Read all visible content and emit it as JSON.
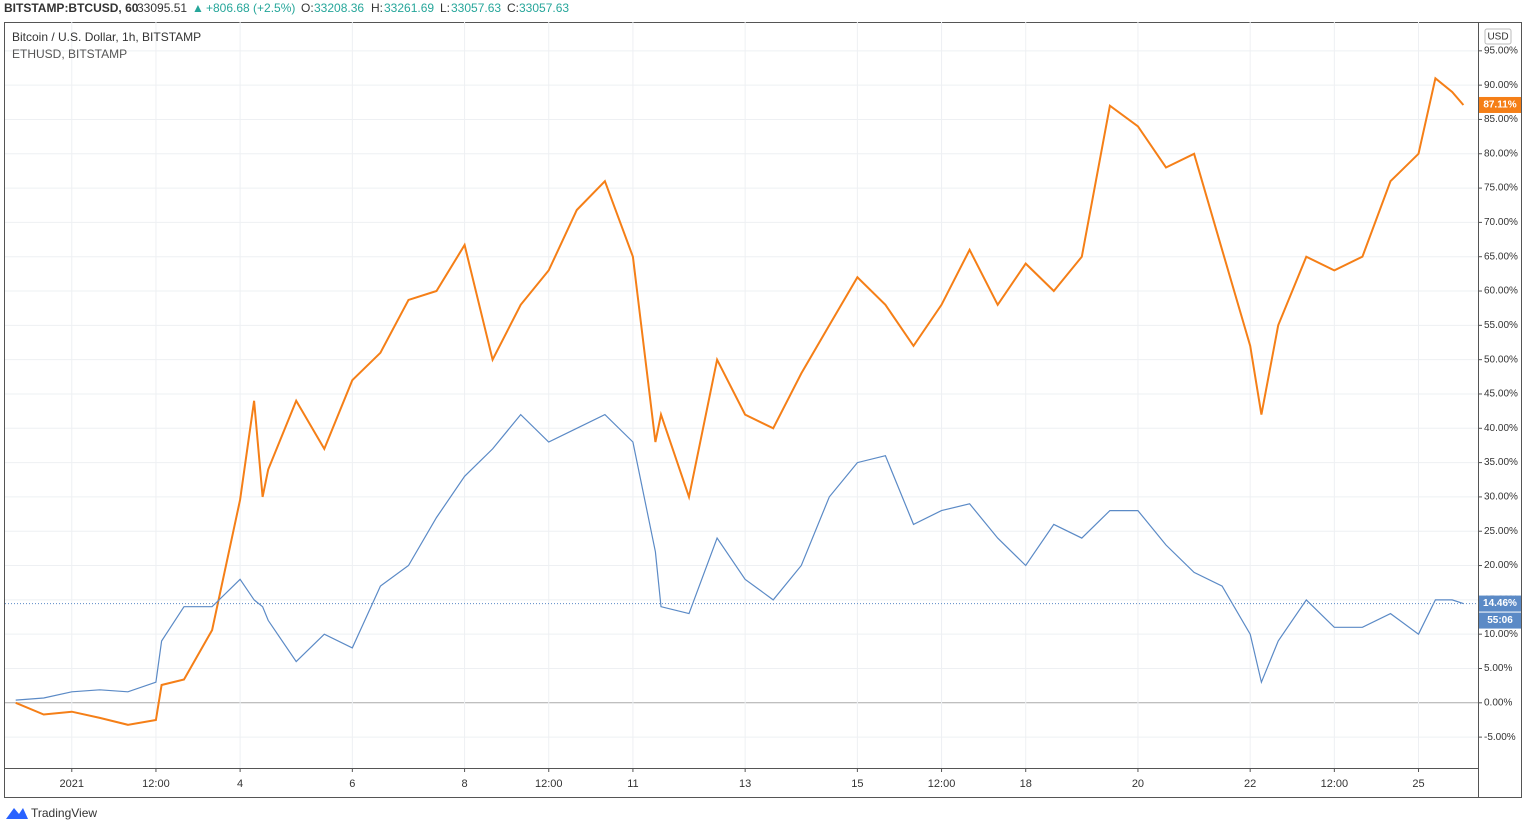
{
  "header": {
    "symbol": "BITSTAMP:BTCUSD, 60",
    "price": "33095.51",
    "arrow": "▲",
    "change": "+806.68 (+2.5%)",
    "o_label": "O:",
    "o": "33208.36",
    "h_label": "H:",
    "h": "33261.69",
    "l_label": "L:",
    "l": "33057.63",
    "c_label": "C:",
    "c": "33057.63"
  },
  "footer": {
    "brand": "TradingView"
  },
  "chart_data": {
    "type": "line",
    "currency": "USD",
    "countdown": "55:06",
    "x": [
      -1,
      -0.5,
      0,
      0.5,
      1,
      1.5,
      1.6,
      2,
      2.5,
      3,
      3.25,
      3.4,
      3.5,
      4,
      4.5,
      5,
      5.5,
      6,
      6.5,
      7,
      7.5,
      8,
      8.5,
      9,
      9.5,
      10,
      10.4,
      10.5,
      11,
      11.5,
      12,
      12.5,
      13,
      13.5,
      14,
      14.5,
      15,
      15.5,
      16,
      16.5,
      17,
      17.5,
      18,
      18.5,
      19,
      19.5,
      20,
      20.5,
      21,
      21.2,
      21.5,
      22,
      22.5,
      23,
      23.5,
      24,
      24.3,
      24.6,
      24.8
    ],
    "series": [
      {
        "name": "Bitcoin / U.S. Dollar, 1h, BITSTAMP",
        "color": "#f57f17",
        "last_label": "87.11%",
        "values": [
          0,
          -1.7,
          -1.3,
          -2.2,
          -3.2,
          -2.5,
          2.6,
          3.4,
          10.6,
          29.6,
          44,
          30,
          34,
          44,
          37,
          47,
          51,
          58.7,
          60,
          66.7,
          50,
          58,
          63,
          71.8,
          76,
          65,
          38,
          42,
          30,
          50,
          42,
          40,
          48,
          55,
          62,
          58,
          52,
          58,
          66,
          58,
          64,
          60,
          65,
          87,
          84,
          78,
          80,
          66,
          52,
          42,
          55,
          65,
          63,
          65,
          76,
          80,
          91,
          89,
          87.11
        ]
      },
      {
        "name": "ETHUSD, BITSTAMP",
        "color": "#5b8ac6",
        "last_label": "14.46%",
        "values": [
          0.4,
          0.7,
          1.6,
          1.9,
          1.6,
          3,
          9,
          14,
          14,
          18,
          15,
          14,
          12,
          6,
          10,
          8,
          17,
          20,
          27,
          33,
          37,
          42,
          38,
          40,
          42,
          38,
          22,
          14,
          13,
          24,
          18,
          15,
          20,
          30,
          35,
          36,
          26,
          28,
          29,
          24,
          20,
          26,
          24,
          28,
          28,
          23,
          19,
          17,
          10,
          3,
          9,
          15,
          11,
          11,
          13,
          10,
          15,
          15,
          14.46
        ]
      }
    ],
    "xlim": [
      -1.19,
      25.06
    ],
    "xticks": [
      {
        "value": 0,
        "label": "2021"
      },
      {
        "value": 1.5,
        "label": "12:00"
      },
      {
        "value": 3,
        "label": "4"
      },
      {
        "value": 5,
        "label": "6"
      },
      {
        "value": 7,
        "label": "8"
      },
      {
        "value": 8.5,
        "label": "12:00"
      },
      {
        "value": 10,
        "label": "11"
      },
      {
        "value": 12,
        "label": "13"
      },
      {
        "value": 14,
        "label": "15"
      },
      {
        "value": 15.5,
        "label": "12:00"
      },
      {
        "value": 17,
        "label": "18"
      },
      {
        "value": 19,
        "label": "20"
      },
      {
        "value": 21,
        "label": "22"
      },
      {
        "value": 22.5,
        "label": "12:00"
      },
      {
        "value": 24,
        "label": "25"
      }
    ],
    "ylim": [
      -9.5,
      99.2
    ],
    "yticks": [
      {
        "value": -5,
        "label": "-5.00%"
      },
      {
        "value": 0,
        "label": "0.00%"
      },
      {
        "value": 5,
        "label": "5.00%"
      },
      {
        "value": 10,
        "label": "10.00%"
      },
      {
        "value": 15,
        "label": "15.00%"
      },
      {
        "value": 20,
        "label": "20.00%"
      },
      {
        "value": 25,
        "label": "25.00%"
      },
      {
        "value": 30,
        "label": "30.00%"
      },
      {
        "value": 35,
        "label": "35.00%"
      },
      {
        "value": 40,
        "label": "40.00%"
      },
      {
        "value": 45,
        "label": "45.00%"
      },
      {
        "value": 50,
        "label": "50.00%"
      },
      {
        "value": 55,
        "label": "55.00%"
      },
      {
        "value": 60,
        "label": "60.00%"
      },
      {
        "value": 65,
        "label": "65.00%"
      },
      {
        "value": 70,
        "label": "70.00%"
      },
      {
        "value": 75,
        "label": "75.00%"
      },
      {
        "value": 80,
        "label": "80.00%"
      },
      {
        "value": 85,
        "label": "85.00%"
      },
      {
        "value": 90,
        "label": "90.00%"
      },
      {
        "value": 95,
        "label": "95.00%"
      }
    ],
    "grid": true
  }
}
